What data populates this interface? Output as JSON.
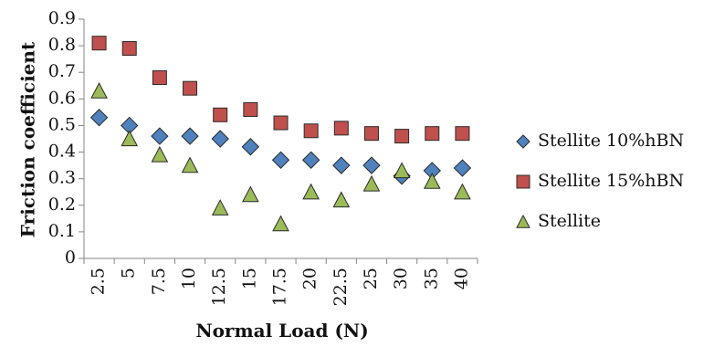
{
  "chart_data": {
    "type": "scatter",
    "title": "",
    "xlabel": "Normal Load (N)",
    "ylabel": "Friction coefficient",
    "ylim": [
      0,
      0.9
    ],
    "y_ticks": [
      "0",
      "0.1",
      "0.2",
      "0.3",
      "0.4",
      "0.5",
      "0.6",
      "0.7",
      "0.8",
      "0.9"
    ],
    "categories": [
      "2.5",
      "5",
      "7.5",
      "10",
      "12.5",
      "15",
      "17.5",
      "20",
      "22.5",
      "25",
      "30",
      "35",
      "40"
    ],
    "grid": false,
    "legend_position": "right",
    "series": [
      {
        "name": "Stellite 10%hBN",
        "marker": "diamond",
        "color": "#4f81bd",
        "values": [
          0.53,
          0.5,
          0.46,
          0.46,
          0.45,
          0.42,
          0.37,
          0.37,
          0.35,
          0.35,
          0.31,
          0.33,
          0.34
        ]
      },
      {
        "name": "Stellite 15%hBN",
        "marker": "square",
        "color": "#c0504d",
        "values": [
          0.81,
          0.79,
          0.68,
          0.64,
          0.54,
          0.56,
          0.51,
          0.48,
          0.49,
          0.47,
          0.46,
          0.47,
          0.47
        ]
      },
      {
        "name": "Stellite",
        "marker": "triangle",
        "color": "#9bbb59",
        "values": [
          0.63,
          0.45,
          0.39,
          0.35,
          0.19,
          0.24,
          0.13,
          0.25,
          0.22,
          0.28,
          0.33,
          0.29,
          0.25
        ]
      }
    ]
  }
}
